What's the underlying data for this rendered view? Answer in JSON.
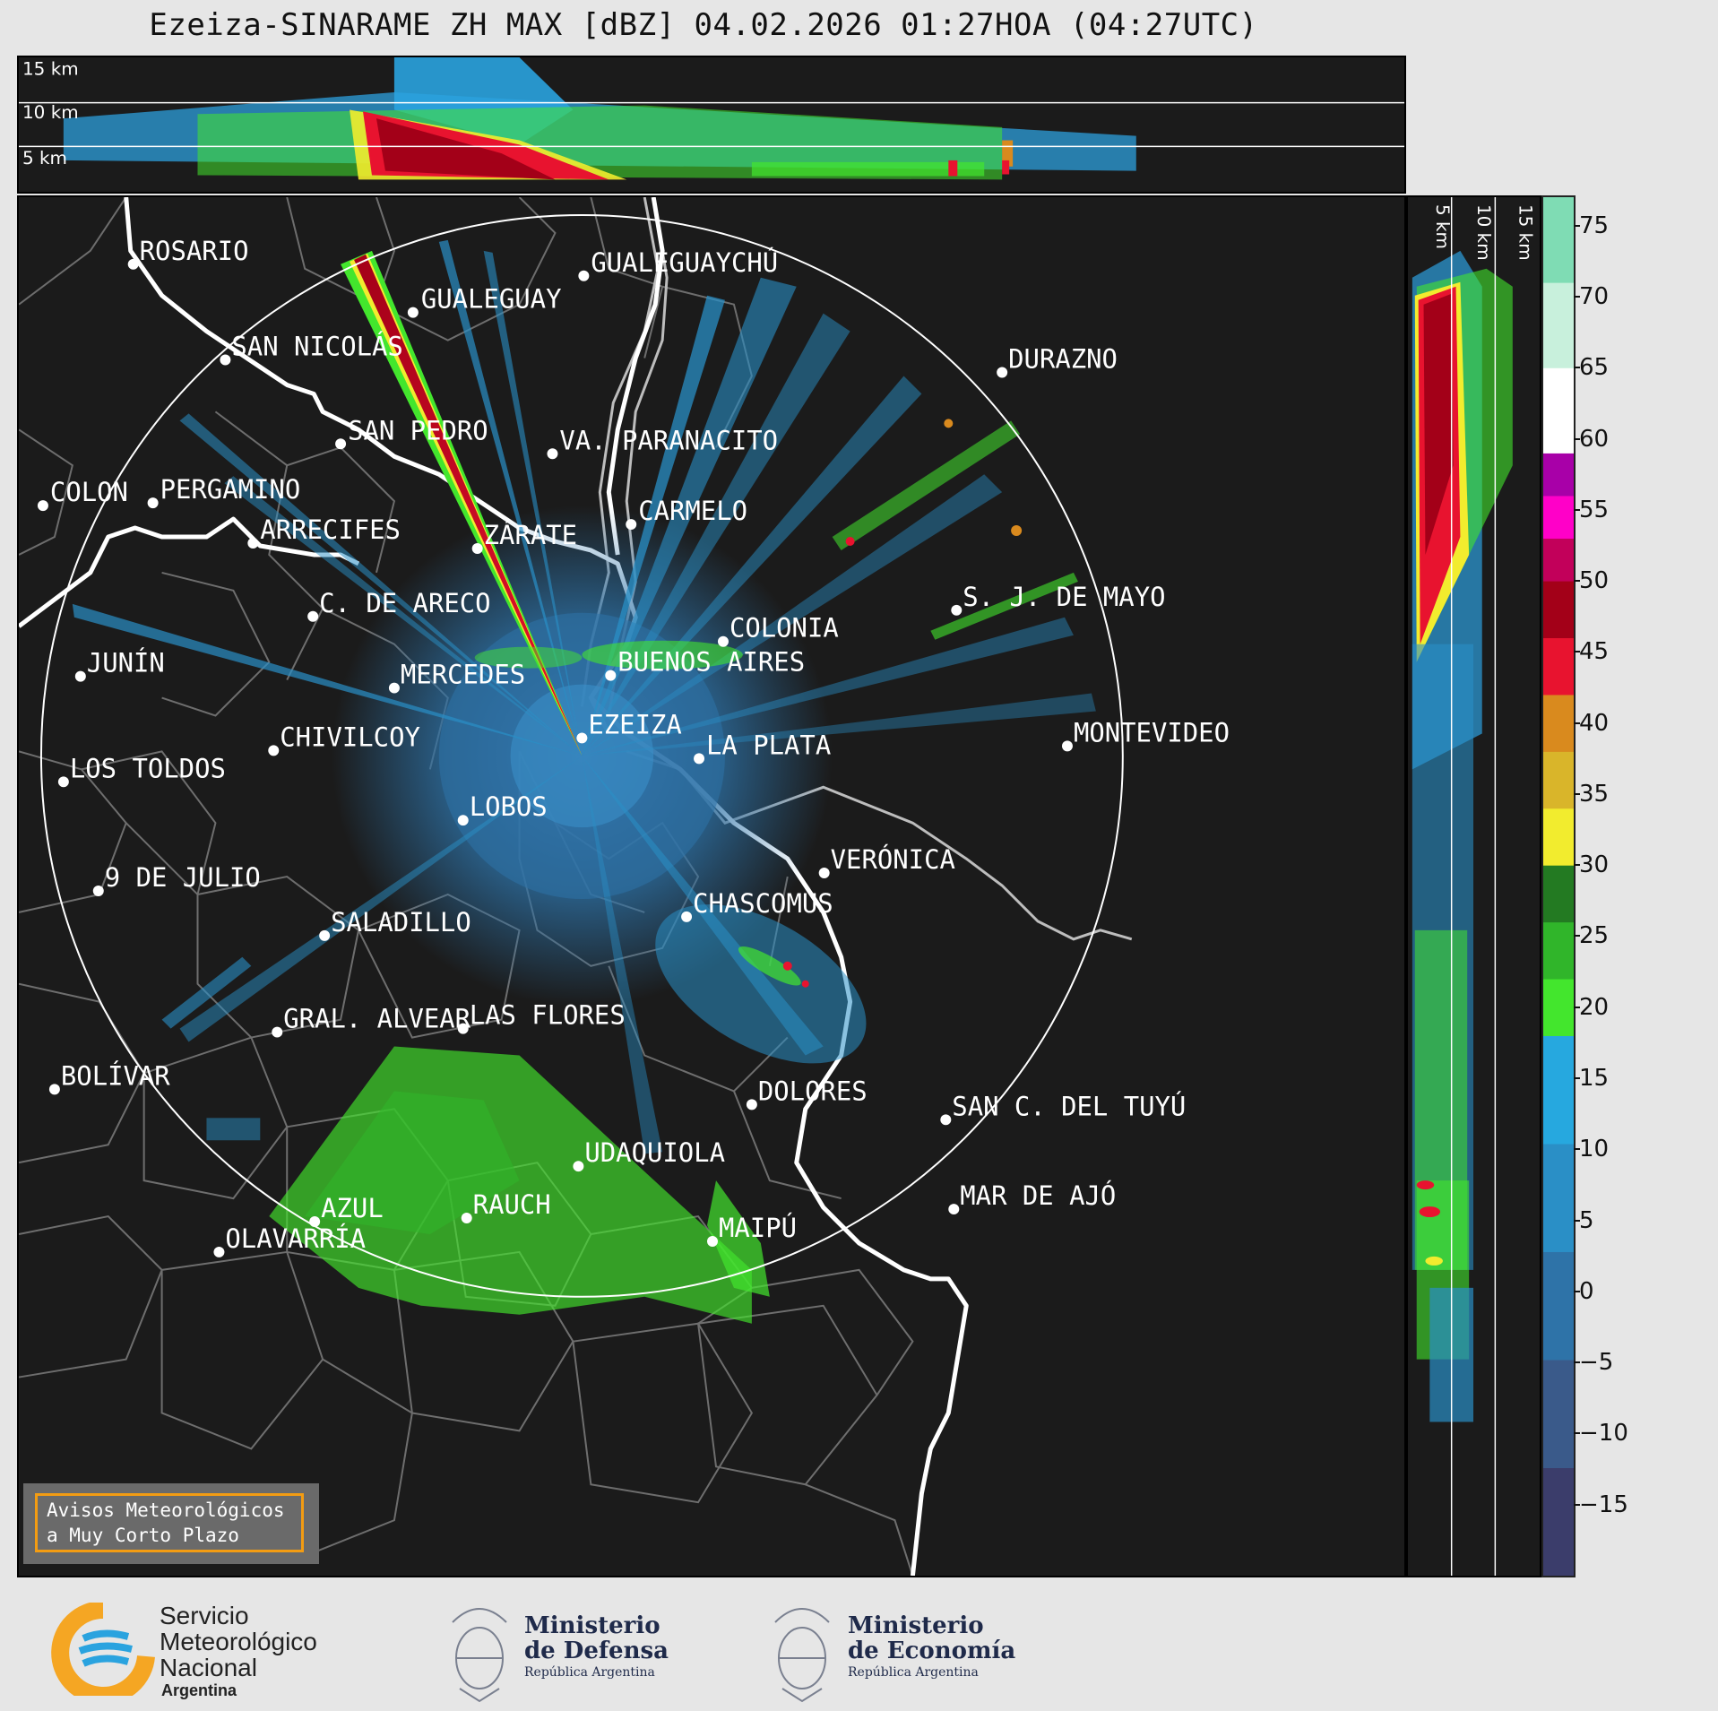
{
  "title": "Ezeiza-SINARAME ZH MAX [dBZ] 04.02.2026 01:27HOA (04:27UTC)",
  "top_panel": {
    "altitude_labels": [
      "15 km",
      "10 km",
      "5 km"
    ]
  },
  "side_panel": {
    "altitude_labels": [
      "5 km",
      "10 km",
      "15 km"
    ]
  },
  "colorbar": {
    "unit": "dBZ",
    "ticks": [
      "75",
      "70",
      "65",
      "60",
      "55",
      "50",
      "45",
      "40",
      "35",
      "30",
      "25",
      "20",
      "15",
      "10",
      "5",
      "0",
      "−5",
      "−10",
      "−15"
    ],
    "tick_values": [
      75,
      70,
      65,
      60,
      55,
      50,
      45,
      40,
      35,
      30,
      25,
      20,
      15,
      10,
      5,
      0,
      -5,
      -10,
      -15
    ],
    "range": [
      -20,
      77
    ],
    "bands": [
      {
        "from": -20,
        "to": 18,
        "colors": [
          "#3b3d6b",
          "#3a5a8a",
          "#2e73a8",
          "#2a8fc6",
          "#26a8df"
        ]
      },
      {
        "from": 18,
        "to": 30,
        "colors": [
          "#43e62d",
          "#30b52a",
          "#237a22"
        ]
      },
      {
        "from": 30,
        "to": 42,
        "colors": [
          "#f2ec2e",
          "#d9b52a",
          "#d98a1e"
        ]
      },
      {
        "from": 42,
        "to": 50,
        "colors": [
          "#e8132f",
          "#a30018"
        ]
      },
      {
        "from": 50,
        "to": 59,
        "colors": [
          "#c2005a",
          "#ff00c8",
          "#a800a8"
        ]
      },
      {
        "from": 59,
        "to": 77,
        "colors": [
          "#ffffff",
          "#c8f0dc",
          "#7fdcb4"
        ]
      }
    ]
  },
  "cities": [
    {
      "name": "ROSARIO"
    },
    {
      "name": "GUALEGUAYCHÚ"
    },
    {
      "name": "GUALEGUAY"
    },
    {
      "name": "SAN NICOLÁS"
    },
    {
      "name": "DURAZNO"
    },
    {
      "name": "SAN PEDRO"
    },
    {
      "name": "VA. PARANACITO"
    },
    {
      "name": "COLON"
    },
    {
      "name": "PERGAMINO"
    },
    {
      "name": "CARMELO"
    },
    {
      "name": "ARRECIFES"
    },
    {
      "name": "ZÁRATE"
    },
    {
      "name": "S. J. DE MAYO"
    },
    {
      "name": "C. DE ARECO"
    },
    {
      "name": "COLONIA"
    },
    {
      "name": "JUNÍN"
    },
    {
      "name": "MERCEDES"
    },
    {
      "name": "BUENOS AIRES"
    },
    {
      "name": "MONTEVIDEO"
    },
    {
      "name": "CHIVILCOY"
    },
    {
      "name": "EZEIZA"
    },
    {
      "name": "LA PLATA"
    },
    {
      "name": "LOS TOLDOS"
    },
    {
      "name": "LOBOS"
    },
    {
      "name": "VERÓNICA"
    },
    {
      "name": "9 DE JULIO"
    },
    {
      "name": "CHASCOMUS"
    },
    {
      "name": "SALADILLO"
    },
    {
      "name": "GRAL. ALVEAR"
    },
    {
      "name": "LAS FLORES"
    },
    {
      "name": "BOLÍVAR"
    },
    {
      "name": "DOLORES"
    },
    {
      "name": "SAN C. DEL TUYÚ"
    },
    {
      "name": "UDAQUIOLA"
    },
    {
      "name": "MAR DE AJÓ"
    },
    {
      "name": "AZUL"
    },
    {
      "name": "RAUCH"
    },
    {
      "name": "OLAVARRÍA"
    },
    {
      "name": "MAIPÚ"
    }
  ],
  "avisos": {
    "line1": "Avisos Meteorológicos",
    "line2": "a Muy Corto Plazo"
  },
  "footer": {
    "smn": [
      "Servicio",
      "Meteorológico",
      "Nacional",
      "Argentina"
    ],
    "defensa": [
      "Ministerio",
      "de Defensa",
      "República Argentina"
    ],
    "economia": [
      "Ministerio",
      "de Economía",
      "República Argentina"
    ]
  },
  "colors": {
    "background": "#1b1b1b",
    "page": "#e6e6e6",
    "coast": "#ffffff",
    "boundaries": "#8a8a8a",
    "avisos_border": "#f39c12",
    "smn_orange": "#f5a623",
    "smn_blue": "#2aa3df"
  }
}
